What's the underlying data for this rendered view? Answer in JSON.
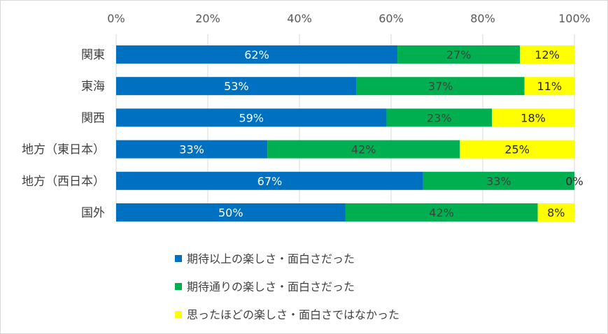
{
  "chart_data": {
    "type": "bar",
    "orientation": "horizontal",
    "stacked": "percent",
    "categories": [
      "関東",
      "東海",
      "関西",
      "地方（東日本）",
      "地方（西日本）",
      "国外"
    ],
    "series": [
      {
        "name": "期待以上の楽しさ・面白さだった",
        "color": "#0070c0",
        "values": [
          62,
          53,
          59,
          33,
          67,
          50
        ]
      },
      {
        "name": "期待通りの楽しさ・面白さだった",
        "color": "#00b050",
        "values": [
          27,
          37,
          23,
          42,
          33,
          42
        ]
      },
      {
        "name": "思ったほどの楽しさ・面白さではなかった",
        "color": "#ffff00",
        "values": [
          12,
          11,
          18,
          25,
          0,
          8
        ]
      }
    ],
    "data_labels": [
      [
        "62%",
        "53%",
        "59%",
        "33%",
        "67%",
        "50%"
      ],
      [
        "27%",
        "37%",
        "23%",
        "42%",
        "33%",
        "42%"
      ],
      [
        "12%",
        "11%",
        "18%",
        "25%",
        "0%",
        "8%"
      ]
    ],
    "data_label_colors": [
      "#ffffff",
      "#404040",
      "#262626"
    ],
    "xlim": [
      0,
      100
    ],
    "x_ticks": [
      "0%",
      "20%",
      "40%",
      "60%",
      "80%",
      "100%"
    ],
    "grid": true,
    "legend_position": "bottom",
    "title": "",
    "xlabel": "",
    "ylabel": ""
  }
}
